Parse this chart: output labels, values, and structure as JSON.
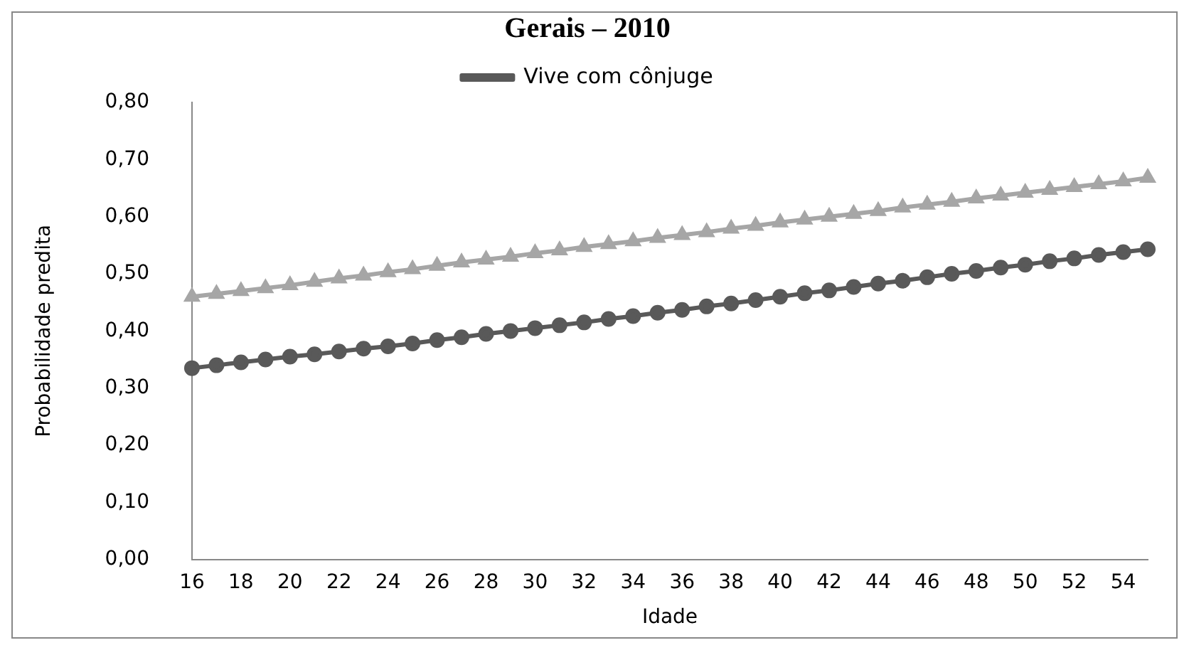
{
  "chart_data": {
    "type": "line",
    "title": "Gerais – 2010",
    "xlabel": "Idade",
    "ylabel": "Probabilidade predita",
    "categories": [
      "16",
      null,
      "18",
      null,
      "20",
      null,
      "22",
      null,
      "24",
      null,
      "26",
      null,
      "28",
      null,
      "30",
      null,
      "32",
      null,
      "34",
      null,
      "36",
      null,
      "38",
      null,
      "40",
      null,
      "42",
      null,
      "44",
      null,
      "46",
      null,
      "48",
      null,
      "50",
      null,
      "52",
      null,
      "54",
      null
    ],
    "series": [
      {
        "name": "Vive com cônjuge",
        "color": "#595959",
        "marker": "circle",
        "values": [
          0.335,
          0.34,
          0.345,
          0.35,
          0.355,
          0.359,
          0.364,
          0.369,
          0.373,
          0.378,
          0.384,
          0.389,
          0.395,
          0.4,
          0.405,
          0.41,
          0.415,
          0.421,
          0.426,
          0.432,
          0.437,
          0.443,
          0.448,
          0.454,
          0.46,
          0.466,
          0.471,
          0.477,
          0.483,
          0.488,
          0.494,
          0.5,
          0.505,
          0.511,
          0.516,
          0.522,
          0.527,
          0.533,
          0.538,
          0.543
        ]
      },
      {
        "color": "#a6a6a6",
        "marker": "triangle",
        "values": [
          0.46,
          0.465,
          0.47,
          0.475,
          0.48,
          0.486,
          0.492,
          0.497,
          0.503,
          0.508,
          0.514,
          0.52,
          0.525,
          0.53,
          0.536,
          0.541,
          0.547,
          0.552,
          0.557,
          0.563,
          0.568,
          0.573,
          0.579,
          0.584,
          0.59,
          0.595,
          0.6,
          0.605,
          0.61,
          0.616,
          0.621,
          0.626,
          0.632,
          0.637,
          0.642,
          0.647,
          0.652,
          0.657,
          0.662,
          0.668
        ]
      }
    ],
    "ylim": [
      0,
      0.8
    ],
    "yticks": [
      {
        "value": 0,
        "label": "0,00"
      },
      {
        "value": 0.1,
        "label": "0,10"
      },
      {
        "value": 0.2,
        "label": "0,20"
      },
      {
        "value": 0.3,
        "label": "0,30"
      },
      {
        "value": 0.4,
        "label": "0,40"
      },
      {
        "value": 0.5,
        "label": "0,50"
      },
      {
        "value": 0.6,
        "label": "0,60"
      },
      {
        "value": 0.7,
        "label": "0,70"
      },
      {
        "value": 0.8,
        "label": "0,80"
      }
    ],
    "grid": false,
    "legend": "top"
  }
}
